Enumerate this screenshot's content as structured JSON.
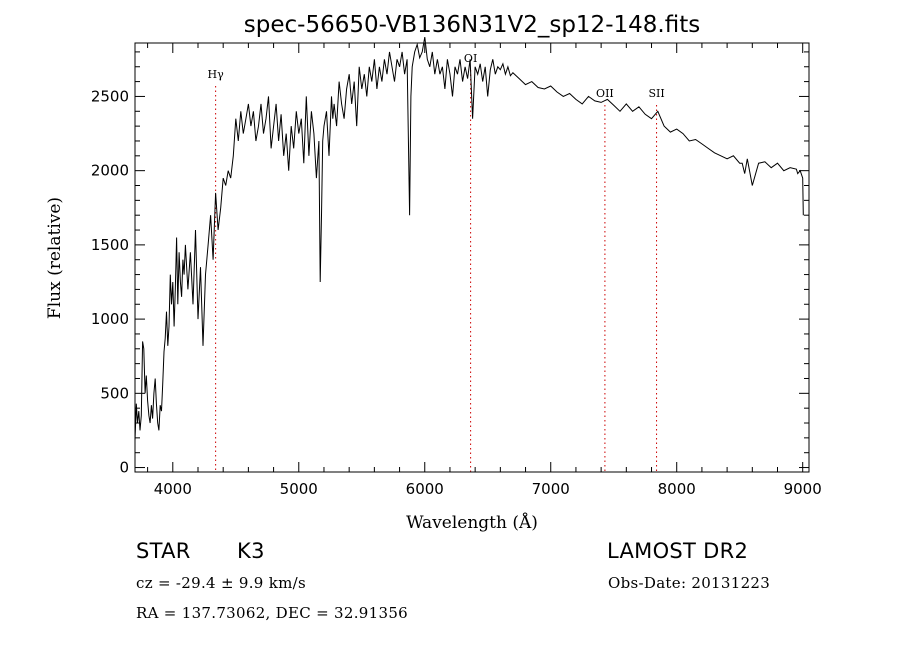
{
  "chart_data": {
    "type": "line",
    "title": "spec-56650-VB136N31V2_sp12-148.fits",
    "xlabel": "Wavelength (Å)",
    "ylabel": "Flux (relative)",
    "xlim": [
      3700,
      9050
    ],
    "ylim": [
      -30,
      2860
    ],
    "xticks": [
      4000,
      5000,
      6000,
      7000,
      8000,
      9000
    ],
    "yticks": [
      0,
      500,
      1000,
      1500,
      2000,
      2500
    ],
    "series": [
      {
        "name": "spectrum",
        "x": [
          3700,
          3710,
          3720,
          3730,
          3740,
          3750,
          3760,
          3770,
          3780,
          3790,
          3800,
          3810,
          3820,
          3830,
          3840,
          3850,
          3860,
          3870,
          3880,
          3890,
          3900,
          3910,
          3920,
          3930,
          3940,
          3950,
          3960,
          3970,
          3980,
          3990,
          4000,
          4010,
          4020,
          4030,
          4040,
          4050,
          4060,
          4070,
          4080,
          4090,
          4100,
          4120,
          4140,
          4160,
          4180,
          4200,
          4220,
          4240,
          4260,
          4280,
          4300,
          4320,
          4340,
          4360,
          4380,
          4400,
          4420,
          4440,
          4460,
          4480,
          4500,
          4520,
          4540,
          4560,
          4580,
          4600,
          4620,
          4640,
          4660,
          4680,
          4700,
          4720,
          4740,
          4760,
          4780,
          4800,
          4820,
          4840,
          4860,
          4880,
          4900,
          4920,
          4940,
          4960,
          4980,
          5000,
          5020,
          5040,
          5060,
          5080,
          5100,
          5120,
          5140,
          5160,
          5170,
          5180,
          5190,
          5200,
          5220,
          5240,
          5260,
          5270,
          5280,
          5300,
          5320,
          5340,
          5360,
          5380,
          5400,
          5420,
          5440,
          5460,
          5480,
          5500,
          5520,
          5540,
          5560,
          5580,
          5600,
          5620,
          5640,
          5660,
          5680,
          5700,
          5720,
          5740,
          5760,
          5780,
          5800,
          5820,
          5840,
          5860,
          5880,
          5890,
          5900,
          5920,
          5940,
          5960,
          5980,
          6000,
          6020,
          6040,
          6060,
          6080,
          6100,
          6120,
          6140,
          6160,
          6180,
          6200,
          6220,
          6240,
          6260,
          6280,
          6300,
          6320,
          6340,
          6360,
          6380,
          6400,
          6420,
          6440,
          6460,
          6480,
          6500,
          6520,
          6540,
          6560,
          6580,
          6600,
          6620,
          6640,
          6660,
          6680,
          6700,
          6750,
          6800,
          6850,
          6900,
          6950,
          7000,
          7050,
          7100,
          7150,
          7200,
          7250,
          7300,
          7350,
          7400,
          7450,
          7500,
          7550,
          7600,
          7650,
          7700,
          7750,
          7800,
          7850,
          7900,
          7950,
          8000,
          8050,
          8100,
          8150,
          8200,
          8250,
          8300,
          8350,
          8400,
          8450,
          8500,
          8520,
          8540,
          8560,
          8600,
          8650,
          8700,
          8750,
          8800,
          8850,
          8900,
          8950,
          8960,
          8980,
          9000,
          9005
        ],
        "y": [
          180,
          430,
          300,
          380,
          250,
          350,
          850,
          800,
          500,
          620,
          450,
          350,
          300,
          420,
          330,
          500,
          600,
          430,
          300,
          250,
          420,
          380,
          560,
          780,
          870,
          1050,
          820,
          950,
          1300,
          1100,
          1250,
          950,
          1200,
          1550,
          1100,
          1450,
          1250,
          1150,
          1400,
          1300,
          1500,
          1200,
          1450,
          1100,
          1600,
          1000,
          1350,
          820,
          1300,
          1500,
          1700,
          1400,
          1850,
          1600,
          1750,
          1950,
          1900,
          2000,
          1950,
          2100,
          2350,
          2200,
          2400,
          2250,
          2350,
          2450,
          2300,
          2400,
          2200,
          2300,
          2450,
          2250,
          2350,
          2500,
          2150,
          2300,
          2450,
          2200,
          2380,
          2100,
          2250,
          2000,
          2300,
          2150,
          2400,
          2250,
          2350,
          2050,
          2500,
          2100,
          2400,
          2250,
          1950,
          2200,
          1250,
          1700,
          2200,
          2300,
          2400,
          2100,
          2500,
          2350,
          2450,
          2300,
          2600,
          2450,
          2350,
          2550,
          2650,
          2450,
          2600,
          2300,
          2700,
          2550,
          2650,
          2500,
          2700,
          2600,
          2750,
          2550,
          2700,
          2600,
          2750,
          2650,
          2800,
          2700,
          2600,
          2750,
          2700,
          2800,
          2650,
          2750,
          1700,
          2500,
          2700,
          2800,
          2850,
          2760,
          2800,
          2900,
          2750,
          2700,
          2800,
          2650,
          2750,
          2650,
          2700,
          2550,
          2750,
          2650,
          2500,
          2700,
          2650,
          2750,
          2600,
          2700,
          2620,
          2750,
          2350,
          2700,
          2650,
          2720,
          2600,
          2700,
          2500,
          2680,
          2750,
          2650,
          2700,
          2680,
          2720,
          2650,
          2700,
          2640,
          2660,
          2620,
          2580,
          2600,
          2560,
          2550,
          2570,
          2530,
          2500,
          2520,
          2480,
          2450,
          2500,
          2470,
          2460,
          2480,
          2440,
          2400,
          2450,
          2400,
          2430,
          2380,
          2350,
          2400,
          2300,
          2260,
          2280,
          2250,
          2200,
          2210,
          2180,
          2150,
          2120,
          2100,
          2080,
          2100,
          2050,
          2050,
          1980,
          2080,
          1900,
          2050,
          2060,
          2020,
          2050,
          2000,
          2020,
          2010,
          1980,
          2000,
          1950,
          1700
        ]
      }
    ],
    "annotations": [
      {
        "label": "Hγ",
        "x": 4340
      },
      {
        "label": "OI",
        "x": 6364
      },
      {
        "label": "OII",
        "x": 7430
      },
      {
        "label": "SII",
        "x": 7840
      }
    ],
    "grid": false,
    "legend": "none"
  },
  "info": {
    "object_type": "STAR",
    "subclass": "K3",
    "survey": "LAMOST DR2",
    "cz_line": "cz = -29.4 ± 9.9 km/s",
    "obs_date": "Obs-Date: 20131223",
    "coords": "RA = 137.73062, DEC =  32.91356"
  }
}
